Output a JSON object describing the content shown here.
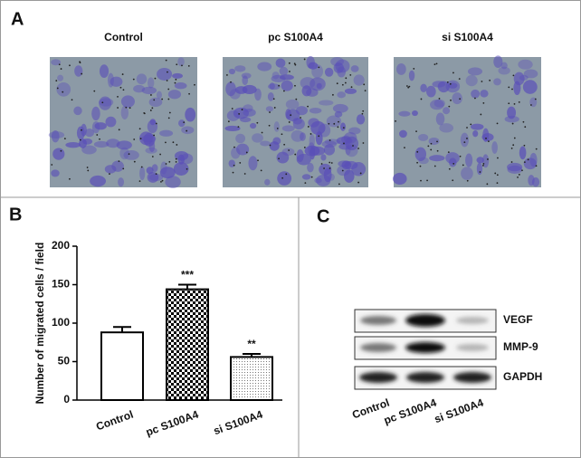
{
  "panel_labels": [
    "A",
    "B",
    "C"
  ],
  "panel_a": {
    "image_titles": [
      "Control",
      "pc S100A4",
      "si S100A4"
    ]
  },
  "chart_data": {
    "type": "bar",
    "y_label": "Number of migrated cells / field",
    "categories": [
      "Control",
      "pc S100A4",
      "si S100A4"
    ],
    "values": [
      88,
      144,
      56
    ],
    "errors": [
      7,
      6,
      4
    ],
    "significance": [
      null,
      "***",
      "**"
    ],
    "fills": [
      "solid",
      "checkerboard",
      "dots"
    ],
    "color": "#000000",
    "ylim": [
      0,
      200
    ],
    "yticks": [
      0,
      50,
      100,
      150,
      200
    ]
  },
  "panel_c": {
    "proteins": [
      "VEGF",
      "MMP-9",
      "GAPDH"
    ],
    "lanes": [
      "Control",
      "pc S100A4",
      "si S100A4"
    ]
  }
}
